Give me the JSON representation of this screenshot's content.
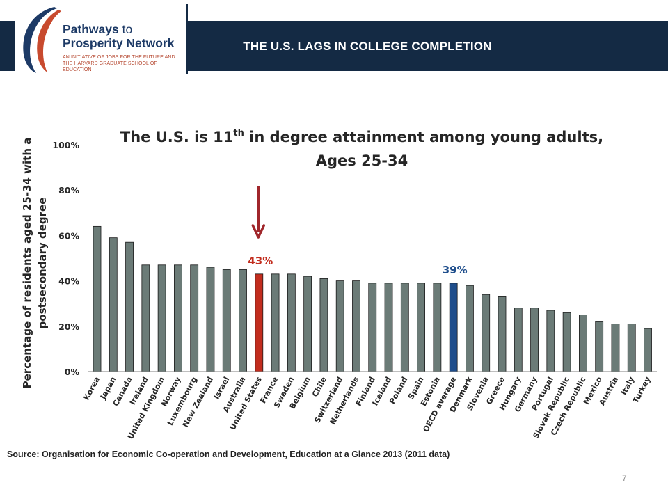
{
  "logo": {
    "line1_bold": "Pathways",
    "line1_thin": " to",
    "line2": "Prosperity Network",
    "subtitle": "AN INITIATIVE OF JOBS FOR THE FUTURE AND THE HARVARD GRADUATE SCHOOL OF EDUCATION"
  },
  "slide": {
    "title": "THE U.S. LAGS IN COLLEGE COMPLETION",
    "source": "Source: Organisation for Economic Co-operation and Development, Education at a Glance 2013 (2011 data)",
    "page_number": "7"
  },
  "chart_data": {
    "type": "bar",
    "title_line1_pre": "The U.S. is 11",
    "title_sup": "th",
    "title_line1_post": " in degree attainment among young adults,",
    "title_line2": "Ages 25-34",
    "ylabel_line1": "Percentage of residents aged 25-34 with a",
    "ylabel_line2": "postsecondary degree",
    "ylim": [
      0,
      100
    ],
    "yticks": [
      "0%",
      "20%",
      "40%",
      "60%",
      "80%",
      "100%"
    ],
    "ytick_values": [
      0,
      20,
      40,
      60,
      80,
      100
    ],
    "categories": [
      "Korea",
      "Japan",
      "Canada",
      "Ireland",
      "United Kingdom",
      "Norway",
      "Luxembourg",
      "New Zealand",
      "Israel",
      "Australia",
      "United States",
      "France",
      "Sweden",
      "Belgium",
      "Chile",
      "Switzerland",
      "Netherlands",
      "Finland",
      "Iceland",
      "Poland",
      "Spain",
      "Estonia",
      "OECD average",
      "Denmark",
      "Slovenia",
      "Greece",
      "Hungary",
      "Germany",
      "Portugal",
      "Slovak Republic",
      "Czech Republic",
      "Mexico",
      "Austria",
      "Italy",
      "Turkey"
    ],
    "values": [
      64,
      59,
      57,
      47,
      47,
      47,
      47,
      46,
      45,
      45,
      43,
      43,
      43,
      42,
      41,
      40,
      40,
      39,
      39,
      39,
      39,
      39,
      39,
      38,
      34,
      33,
      28,
      28,
      27,
      26,
      25,
      22,
      21,
      21,
      19
    ],
    "colors": {
      "default": "#6b7b77",
      "highlight_us": "#c22d1e",
      "highlight_oecd": "#1f4e8c",
      "arrow": "#a0262b"
    },
    "annotations": [
      {
        "category": "United States",
        "text": "43%",
        "color": "#c22d1e"
      },
      {
        "category": "OECD average",
        "text": "39%",
        "color": "#1f4e8c"
      }
    ],
    "grid": false,
    "legend": "none"
  }
}
